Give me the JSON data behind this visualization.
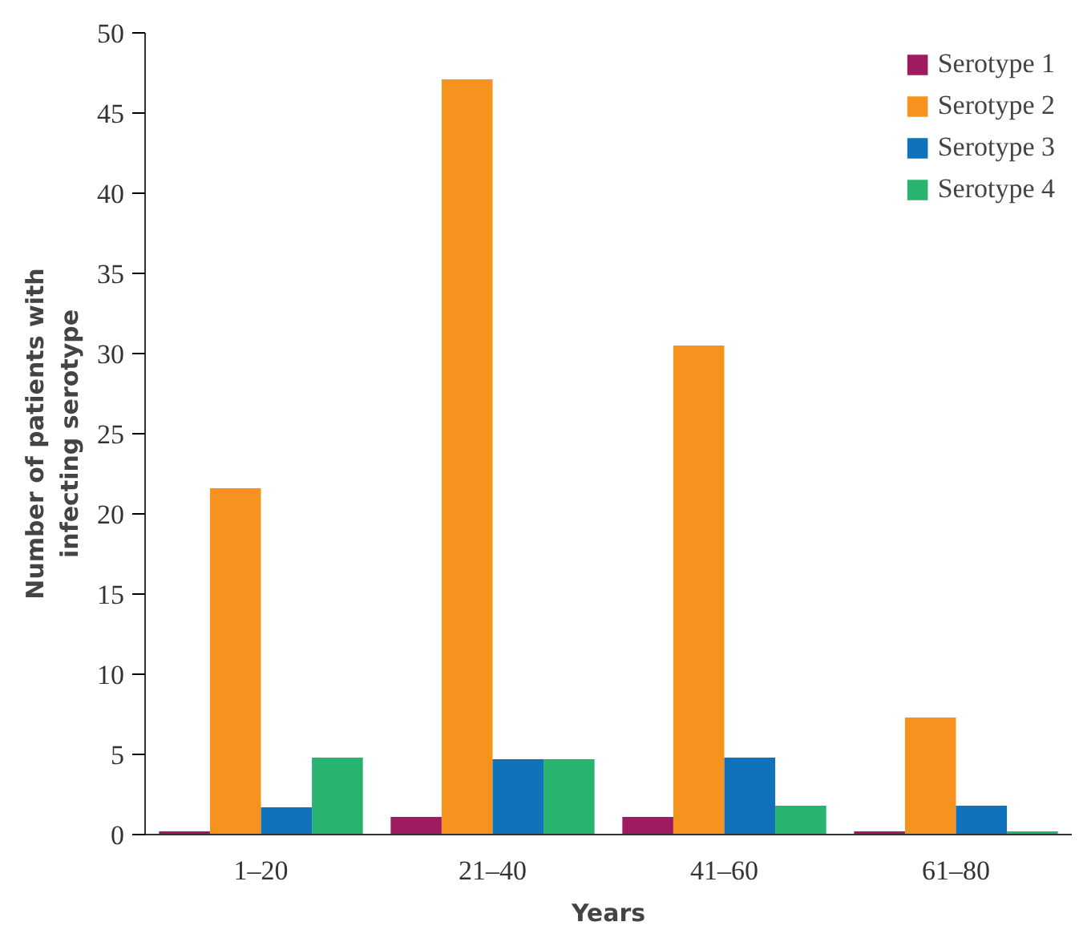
{
  "chart_data": {
    "type": "bar",
    "xlabel": "Years",
    "ylabel": "Number of patients with\ninfecting serotype",
    "categories": [
      "1–20",
      "21–40",
      "41–60",
      "61–80"
    ],
    "series": [
      {
        "name": "Serotype 1",
        "color": "#9e1b5f",
        "values": [
          0.2,
          1.1,
          1.1,
          0.2
        ]
      },
      {
        "name": "Serotype 2",
        "color": "#f6921e",
        "values": [
          21.6,
          47.1,
          30.5,
          7.3
        ]
      },
      {
        "name": "Serotype 3",
        "color": "#0f72ba",
        "values": [
          1.7,
          4.7,
          4.8,
          1.8
        ]
      },
      {
        "name": "Serotype 4",
        "color": "#29b371",
        "values": [
          4.8,
          4.7,
          1.8,
          0.2
        ]
      }
    ],
    "ylim": [
      0,
      50
    ],
    "yticks": [
      0,
      5,
      10,
      15,
      20,
      25,
      30,
      35,
      40,
      45,
      50
    ],
    "grid": false,
    "legend": "top right"
  }
}
